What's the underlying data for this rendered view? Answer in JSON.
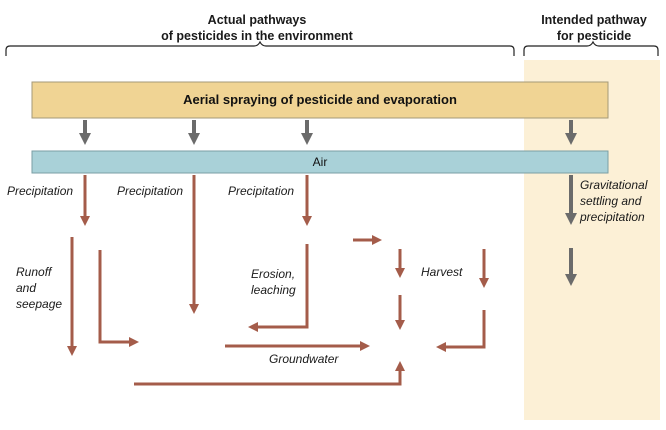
{
  "headers": {
    "actual": [
      "Actual pathways",
      "of pesticides in the environment"
    ],
    "intended": [
      "Intended pathway",
      "for pesticide"
    ]
  },
  "bars": {
    "spray": "Aerial spraying of pesticide and evaporation",
    "air": "Air"
  },
  "labels": {
    "precipitation_1": "Precipitation",
    "precipitation_2": "Precipitation",
    "precipitation_3": "Precipitation",
    "runoff": [
      "Runoff",
      "and",
      "seepage"
    ],
    "erosion": [
      "Erosion,",
      "leaching"
    ],
    "harvest": "Harvest",
    "groundwater": "Groundwater",
    "gravitational": [
      "Gravitational",
      "settling and",
      "precipitation"
    ]
  },
  "colors": {
    "spray_bar": "#f0d494",
    "air_bar": "#a9d1d8",
    "intended_panel": "#fcf0d6",
    "brown_arrow": "#a45c4a",
    "gray_arrow": "#6b6b6b"
  }
}
